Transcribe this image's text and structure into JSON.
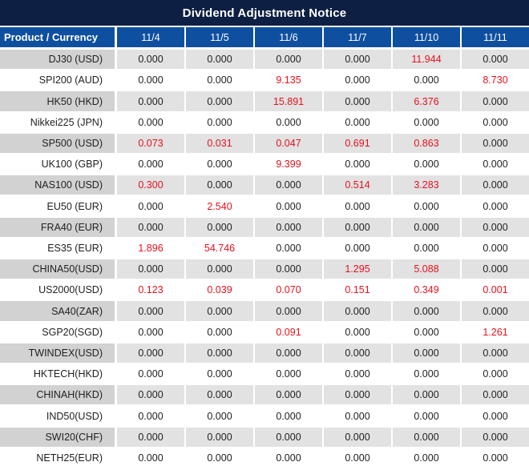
{
  "colors": {
    "title_bar_bg": "#0d1f42",
    "header_bg": "#0f4fa0",
    "stripe_product_bg": "#d2d2d2",
    "stripe_value_bg": "#e2e2e2",
    "value_red": "#e8111d",
    "text_dark": "#1f1f1f",
    "separator": "#ffffff"
  },
  "chart_data": {
    "type": "table",
    "title": "Dividend Adjustment Notice",
    "columns": [
      "Product / Currency",
      "11/4",
      "11/5",
      "11/6",
      "11/7",
      "11/10",
      "11/11"
    ],
    "highlight_rule": "non-zero dividend adjustments shown in red",
    "rows": [
      {
        "product": "DJ30 (USD)",
        "values": [
          "0.000",
          "0.000",
          "0.000",
          "0.000",
          "11.944",
          "0.000"
        ],
        "red": [
          false,
          false,
          false,
          false,
          true,
          false
        ]
      },
      {
        "product": "SPI200 (AUD)",
        "values": [
          "0.000",
          "0.000",
          "9.135",
          "0.000",
          "0.000",
          "8.730"
        ],
        "red": [
          false,
          false,
          true,
          false,
          false,
          true
        ]
      },
      {
        "product": "HK50 (HKD)",
        "values": [
          "0.000",
          "0.000",
          "15.891",
          "0.000",
          "6.376",
          "0.000"
        ],
        "red": [
          false,
          false,
          true,
          false,
          true,
          false
        ]
      },
      {
        "product": "Nikkei225 (JPN)",
        "values": [
          "0.000",
          "0.000",
          "0.000",
          "0.000",
          "0.000",
          "0.000"
        ],
        "red": [
          false,
          false,
          false,
          false,
          false,
          false
        ]
      },
      {
        "product": "SP500 (USD)",
        "values": [
          "0.073",
          "0.031",
          "0.047",
          "0.691",
          "0.863",
          "0.000"
        ],
        "red": [
          true,
          true,
          true,
          true,
          true,
          false
        ]
      },
      {
        "product": "UK100 (GBP)",
        "values": [
          "0.000",
          "0.000",
          "9.399",
          "0.000",
          "0.000",
          "0.000"
        ],
        "red": [
          false,
          false,
          true,
          false,
          false,
          false
        ]
      },
      {
        "product": "NAS100 (USD)",
        "values": [
          "0.300",
          "0.000",
          "0.000",
          "0.514",
          "3.283",
          "0.000"
        ],
        "red": [
          true,
          false,
          false,
          true,
          true,
          false
        ]
      },
      {
        "product": "EU50 (EUR)",
        "values": [
          "0.000",
          "2.540",
          "0.000",
          "0.000",
          "0.000",
          "0.000"
        ],
        "red": [
          false,
          true,
          false,
          false,
          false,
          false
        ]
      },
      {
        "product": "FRA40 (EUR)",
        "values": [
          "0.000",
          "0.000",
          "0.000",
          "0.000",
          "0.000",
          "0.000"
        ],
        "red": [
          false,
          false,
          false,
          false,
          false,
          false
        ]
      },
      {
        "product": "ES35 (EUR)",
        "values": [
          "1.896",
          "54.746",
          "0.000",
          "0.000",
          "0.000",
          "0.000"
        ],
        "red": [
          true,
          true,
          false,
          false,
          false,
          false
        ]
      },
      {
        "product": "CHINA50(USD)",
        "values": [
          "0.000",
          "0.000",
          "0.000",
          "1.295",
          "5.088",
          "0.000"
        ],
        "red": [
          false,
          false,
          false,
          true,
          true,
          false
        ]
      },
      {
        "product": "US2000(USD)",
        "values": [
          "0.123",
          "0.039",
          "0.070",
          "0.151",
          "0.349",
          "0.001"
        ],
        "red": [
          true,
          true,
          true,
          true,
          true,
          true
        ]
      },
      {
        "product": "SA40(ZAR)",
        "values": [
          "0.000",
          "0.000",
          "0.000",
          "0.000",
          "0.000",
          "0.000"
        ],
        "red": [
          false,
          false,
          false,
          false,
          false,
          false
        ]
      },
      {
        "product": "SGP20(SGD)",
        "values": [
          "0.000",
          "0.000",
          "0.091",
          "0.000",
          "0.000",
          "1.261"
        ],
        "red": [
          false,
          false,
          true,
          false,
          false,
          true
        ]
      },
      {
        "product": "TWINDEX(USD)",
        "values": [
          "0.000",
          "0.000",
          "0.000",
          "0.000",
          "0.000",
          "0.000"
        ],
        "red": [
          false,
          false,
          false,
          false,
          false,
          false
        ]
      },
      {
        "product": "HKTECH(HKD)",
        "values": [
          "0.000",
          "0.000",
          "0.000",
          "0.000",
          "0.000",
          "0.000"
        ],
        "red": [
          false,
          false,
          false,
          false,
          false,
          false
        ]
      },
      {
        "product": "CHINAH(HKD)",
        "values": [
          "0.000",
          "0.000",
          "0.000",
          "0.000",
          "0.000",
          "0.000"
        ],
        "red": [
          false,
          false,
          false,
          false,
          false,
          false
        ]
      },
      {
        "product": "IND50(USD)",
        "values": [
          "0.000",
          "0.000",
          "0.000",
          "0.000",
          "0.000",
          "0.000"
        ],
        "red": [
          false,
          false,
          false,
          false,
          false,
          false
        ]
      },
      {
        "product": "SWI20(CHF)",
        "values": [
          "0.000",
          "0.000",
          "0.000",
          "0.000",
          "0.000",
          "0.000"
        ],
        "red": [
          false,
          false,
          false,
          false,
          false,
          false
        ]
      },
      {
        "product": "NETH25(EUR)",
        "values": [
          "0.000",
          "0.000",
          "0.000",
          "0.000",
          "0.000",
          "0.000"
        ],
        "red": [
          false,
          false,
          false,
          false,
          false,
          false
        ]
      }
    ]
  }
}
